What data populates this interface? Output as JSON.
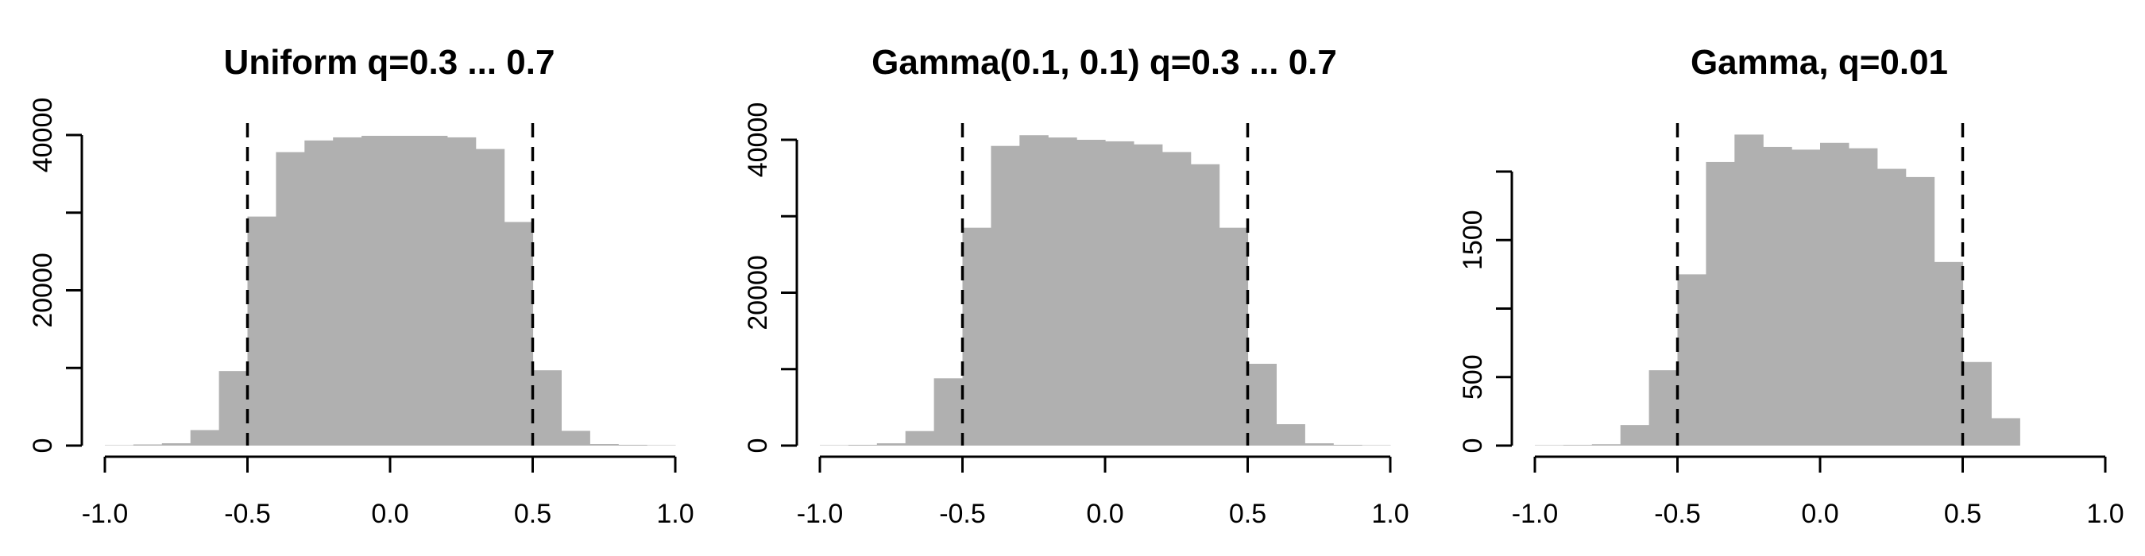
{
  "chart_data": [
    {
      "type": "bar",
      "title": "Uniform q=0.3 ... 0.7",
      "xlabel": "",
      "ylabel": "",
      "xlim": [
        -1.05,
        1.05
      ],
      "ylim": [
        0,
        40000
      ],
      "bin_width": 0.1,
      "bin_starts": [
        -1.0,
        -0.9,
        -0.8,
        -0.7,
        -0.6,
        -0.5,
        -0.4,
        -0.3,
        -0.2,
        -0.1,
        0.0,
        0.1,
        0.2,
        0.3,
        0.4,
        0.5,
        0.6,
        0.7,
        0.8,
        0.9
      ],
      "values": [
        50,
        150,
        300,
        2000,
        9600,
        29500,
        37800,
        39300,
        39700,
        39900,
        39900,
        39900,
        39700,
        38200,
        28800,
        9700,
        1900,
        200,
        100,
        50
      ],
      "x_ticks": [
        "-1.0",
        "-0.5",
        "0.0",
        "0.5",
        "1.0"
      ],
      "x_tick_values": [
        -1.0,
        -0.5,
        0.0,
        0.5,
        1.0
      ],
      "y_ticks": [
        "0",
        "20000",
        "40000"
      ],
      "y_tick_values": [
        0,
        20000,
        40000
      ],
      "y_axis_ticks": [
        0,
        10000,
        20000,
        30000,
        40000
      ],
      "reference_lines": [
        -0.5,
        0.5
      ],
      "grid": false,
      "bar_color": "#b0b0b0"
    },
    {
      "type": "bar",
      "title": "Gamma(0.1, 0.1) q=0.3 ... 0.7",
      "xlabel": "",
      "ylabel": "",
      "xlim": [
        -1.05,
        1.05
      ],
      "ylim": [
        0,
        40000
      ],
      "bin_width": 0.1,
      "bin_starts": [
        -1.0,
        -0.9,
        -0.8,
        -0.7,
        -0.6,
        -0.5,
        -0.4,
        -0.3,
        -0.2,
        -0.1,
        0.0,
        0.1,
        0.2,
        0.3,
        0.4,
        0.5,
        0.6,
        0.7,
        0.8,
        0.9
      ],
      "values": [
        50,
        100,
        300,
        1900,
        8800,
        28500,
        39200,
        40600,
        40300,
        40000,
        39800,
        39400,
        38400,
        36800,
        28500,
        10700,
        2800,
        300,
        100,
        50
      ],
      "x_ticks": [
        "-1.0",
        "-0.5",
        "0.0",
        "0.5",
        "1.0"
      ],
      "x_tick_values": [
        -1.0,
        -0.5,
        0.0,
        0.5,
        1.0
      ],
      "y_ticks": [
        "0",
        "20000",
        "40000"
      ],
      "y_tick_values": [
        0,
        20000,
        40000
      ],
      "y_axis_ticks": [
        0,
        10000,
        20000,
        30000,
        40000
      ],
      "reference_lines": [
        -0.5,
        0.5
      ],
      "grid": false,
      "bar_color": "#b0b0b0"
    },
    {
      "type": "bar",
      "title": "Gamma, q=0.01",
      "xlabel": "",
      "ylabel": "",
      "xlim": [
        -1.05,
        1.05
      ],
      "ylim": [
        0,
        2000
      ],
      "bin_width": 0.1,
      "bin_starts": [
        -1.0,
        -0.9,
        -0.8,
        -0.7,
        -0.6,
        -0.5,
        -0.4,
        -0.3,
        -0.2,
        -0.1,
        0.0,
        0.1,
        0.2,
        0.3,
        0.4,
        0.5,
        0.6
      ],
      "values": [
        3,
        5,
        10,
        150,
        550,
        1250,
        2070,
        2270,
        2180,
        2160,
        2210,
        2170,
        2020,
        1960,
        1340,
        610,
        200
      ],
      "x_ticks": [
        "-1.0",
        "-0.5",
        "0.0",
        "0.5",
        "1.0"
      ],
      "x_tick_values": [
        -1.0,
        -0.5,
        0.0,
        0.5,
        1.0
      ],
      "y_ticks": [
        "0",
        "500",
        "1500"
      ],
      "y_tick_values": [
        0,
        500,
        1500
      ],
      "y_axis_ticks": [
        0,
        500,
        1000,
        1500,
        2000
      ],
      "reference_lines": [
        -0.5,
        0.5
      ],
      "grid": false,
      "bar_color": "#b0b0b0"
    }
  ]
}
